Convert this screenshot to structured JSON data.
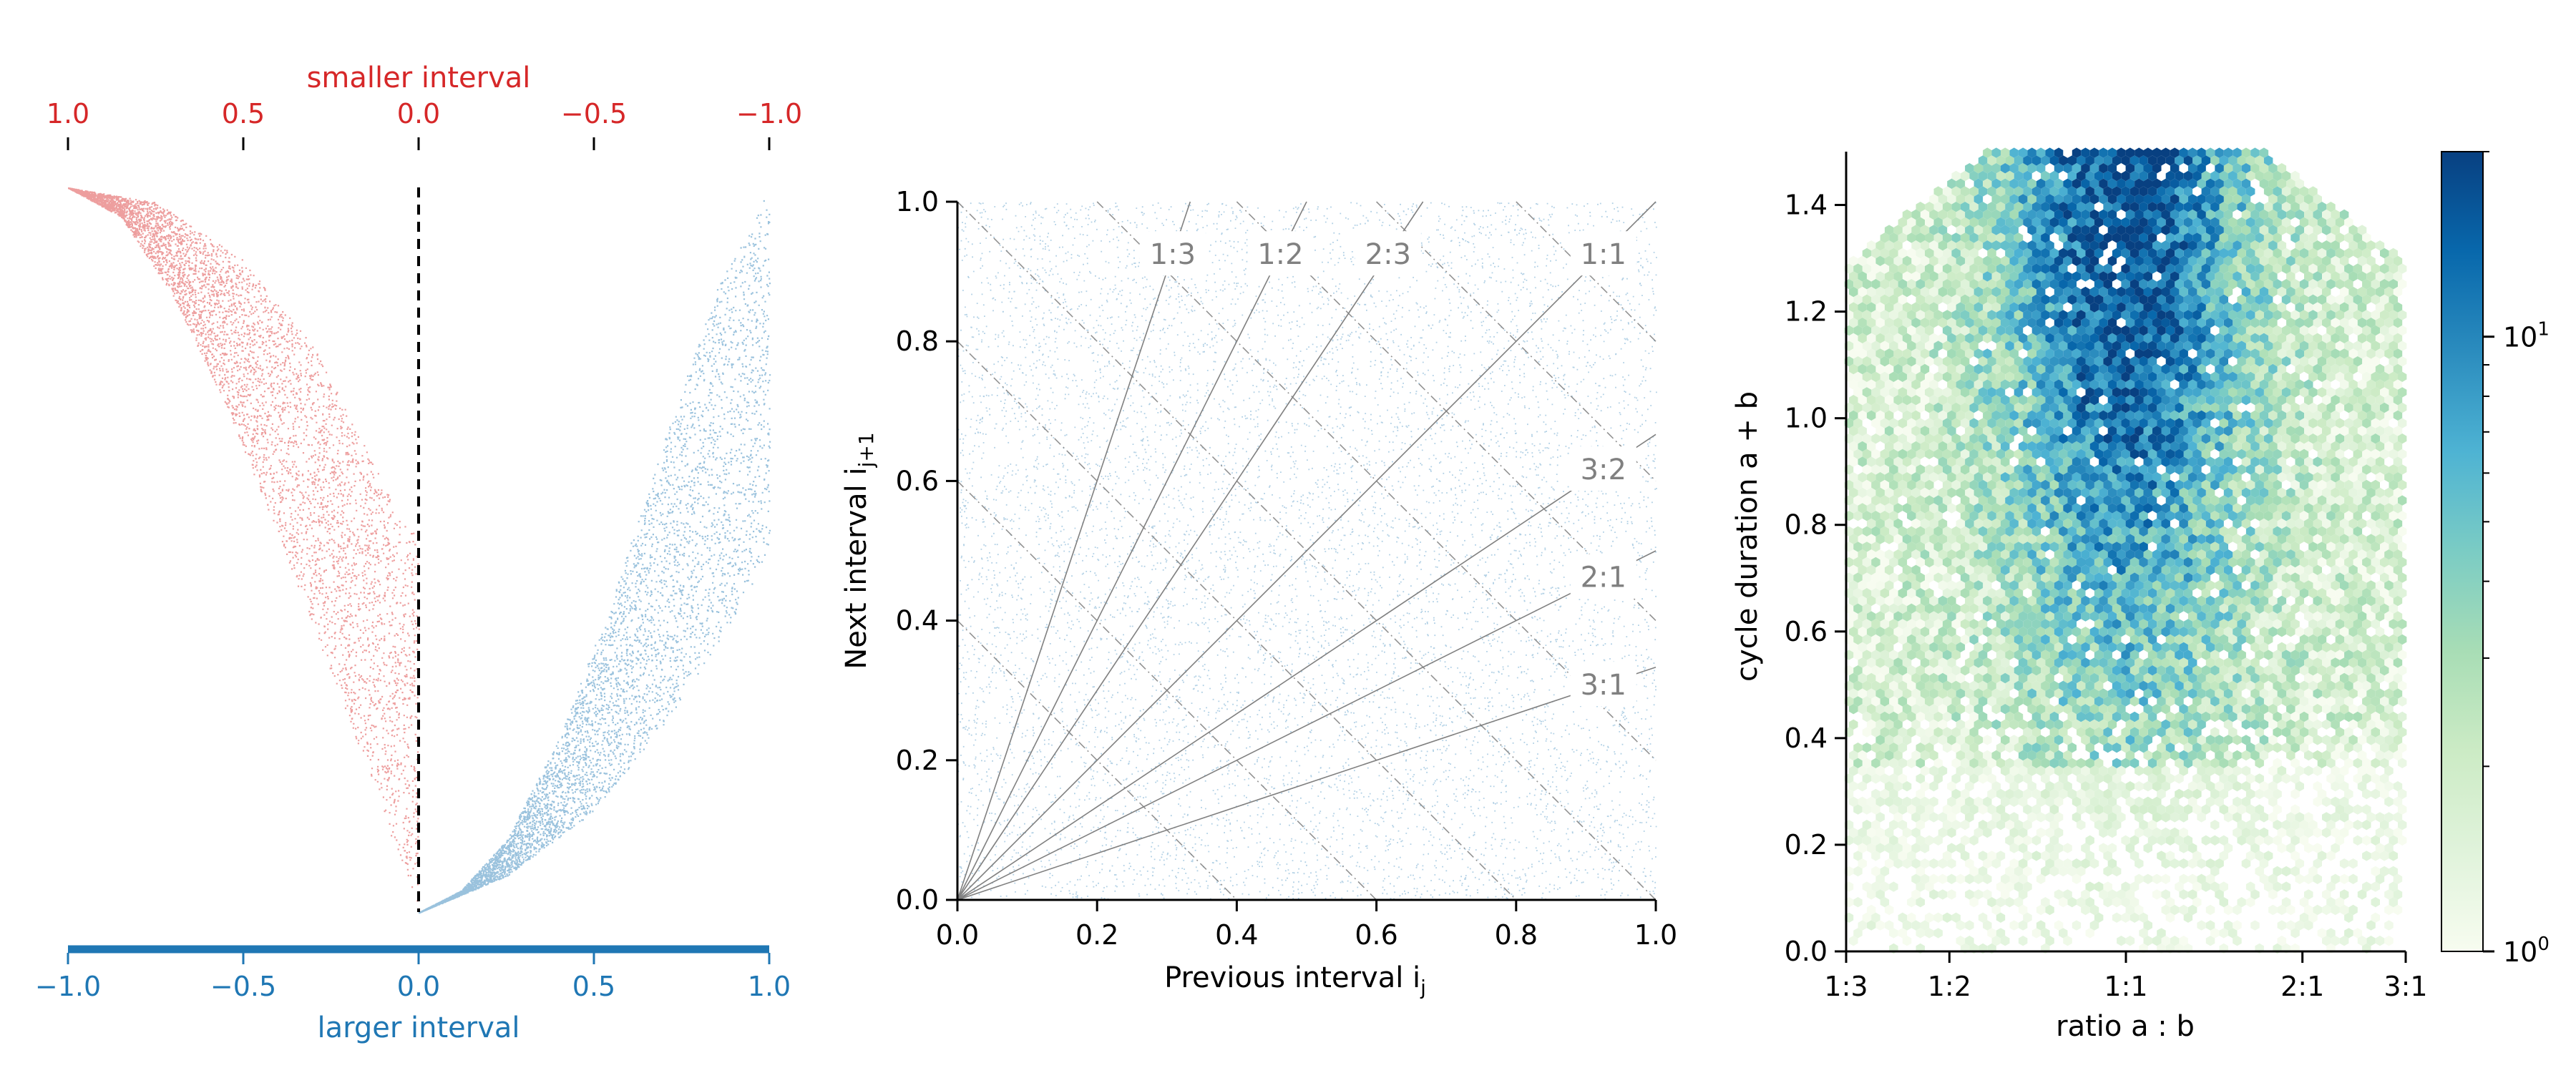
{
  "colors": {
    "red": "#d62728",
    "blue": "#1f77b4",
    "axis": "#000000",
    "ratio_line": "#808080",
    "ratio_label": "#808080",
    "colormap": [
      "#f7fcf0",
      "#e0f3db",
      "#ccebc5",
      "#a8ddb5",
      "#7bccc4",
      "#4eb3d3",
      "#2b8cbe",
      "#0868ac",
      "#084081"
    ]
  },
  "chart_data": [
    {
      "type": "scatter",
      "panel": "left",
      "title": "",
      "top_axis": {
        "label": "smaller interval",
        "ticks": [
          "1.0",
          "0.5",
          "0.0",
          "−0.5",
          "−1.0"
        ],
        "values": [
          -1.0,
          -0.5,
          0.0,
          0.5,
          1.0
        ],
        "color": "#d62728"
      },
      "bottom_axis": {
        "label": "larger interval",
        "ticks": [
          "−1.0",
          "−0.5",
          "0.0",
          "0.5",
          "1.0"
        ],
        "values": [
          -1.0,
          -0.5,
          0.0,
          0.5,
          1.0
        ],
        "color": "#1f77b4"
      },
      "xlim": [
        -1.0,
        1.0
      ],
      "ylim": [
        0.0,
        1.0
      ],
      "series": [
        {
          "name": "",
          "color": "#d62728",
          "side": "left",
          "outer_curve": [
            [
              -1.0,
              1.0
            ],
            [
              -0.85,
              0.96
            ],
            [
              -0.7,
              0.85
            ],
            [
              -0.55,
              0.7
            ],
            [
              -0.4,
              0.52
            ],
            [
              -0.25,
              0.33
            ],
            [
              -0.12,
              0.16
            ],
            [
              0.0,
              0.0
            ]
          ],
          "inner_curve": [
            [
              -1.0,
              1.0
            ],
            [
              -0.75,
              0.98
            ],
            [
              -0.5,
              0.9
            ],
            [
              -0.3,
              0.78
            ],
            [
              -0.15,
              0.64
            ],
            [
              -0.05,
              0.54
            ],
            [
              0.0,
              0.52
            ]
          ]
        },
        {
          "name": "",
          "color": "#1f77b4",
          "side": "right",
          "outer_curve": [
            [
              0.0,
              0.0
            ],
            [
              0.12,
              0.03
            ],
            [
              0.25,
              0.1
            ],
            [
              0.4,
              0.24
            ],
            [
              0.55,
              0.43
            ],
            [
              0.7,
              0.65
            ],
            [
              0.85,
              0.86
            ],
            [
              1.0,
              1.0
            ]
          ],
          "inner_curve": [
            [
              0.0,
              0.0
            ],
            [
              0.25,
              0.05
            ],
            [
              0.5,
              0.14
            ],
            [
              0.7,
              0.26
            ],
            [
              0.85,
              0.37
            ],
            [
              1.0,
              0.49
            ]
          ]
        }
      ],
      "reference_line": {
        "x": 0.0,
        "style": "dashed"
      },
      "grid": false
    },
    {
      "type": "scatter",
      "panel": "middle",
      "title": "",
      "xlabel": "Previous interval i",
      "xlabel_sub": "j",
      "ylabel": "Next interval i",
      "ylabel_sub": "j+1",
      "xlim": [
        0.0,
        1.0
      ],
      "ylim": [
        0.0,
        1.0
      ],
      "xticks": [
        "0.0",
        "0.2",
        "0.4",
        "0.6",
        "0.8",
        "1.0"
      ],
      "xtick_values": [
        0.0,
        0.2,
        0.4,
        0.6,
        0.8,
        1.0
      ],
      "yticks": [
        "0.0",
        "0.2",
        "0.4",
        "0.6",
        "0.8",
        "1.0"
      ],
      "ytick_values": [
        0.0,
        0.2,
        0.4,
        0.6,
        0.8,
        1.0
      ],
      "point_color": "#1f77b4",
      "ratio_lines": [
        {
          "label": "1:3",
          "slope": 3.0
        },
        {
          "label": "1:2",
          "slope": 2.0
        },
        {
          "label": "2:3",
          "slope": 1.5
        },
        {
          "label": "1:1",
          "slope": 1.0
        },
        {
          "label": "3:2",
          "slope": 0.6667
        },
        {
          "label": "2:1",
          "slope": 0.5
        },
        {
          "label": "3:1",
          "slope": 0.3333
        }
      ],
      "constant_sum_lines": [
        0.4,
        0.6,
        0.8,
        1.0,
        1.2,
        1.4,
        1.6,
        1.8
      ],
      "grid": false
    },
    {
      "type": "heatmap",
      "panel": "right",
      "title": "",
      "xlabel": "ratio a : b",
      "ylabel": "cycle duration a + b",
      "xticks": [
        "1:3",
        "1:2",
        "1:1",
        "2:1",
        "3:1"
      ],
      "xtick_values": [
        -1.0986,
        -0.6931,
        0.0,
        0.6931,
        1.0986
      ],
      "xlim": [
        -1.0986,
        1.0986
      ],
      "ylim": [
        0.0,
        1.5
      ],
      "yticks": [
        "0.0",
        "0.2",
        "0.4",
        "0.6",
        "0.8",
        "1.0",
        "1.2",
        "1.4"
      ],
      "ytick_values": [
        0.0,
        0.2,
        0.4,
        0.6,
        0.8,
        1.0,
        1.2,
        1.4
      ],
      "colorbar": {
        "scale": "log",
        "range": [
          1,
          20
        ],
        "tick_values": [
          1,
          10
        ],
        "ticks": [
          {
            "base": "10",
            "exp": "0"
          },
          {
            "base": "10",
            "exp": "1"
          }
        ],
        "cmap": "GnBu"
      },
      "grid": false
    }
  ]
}
